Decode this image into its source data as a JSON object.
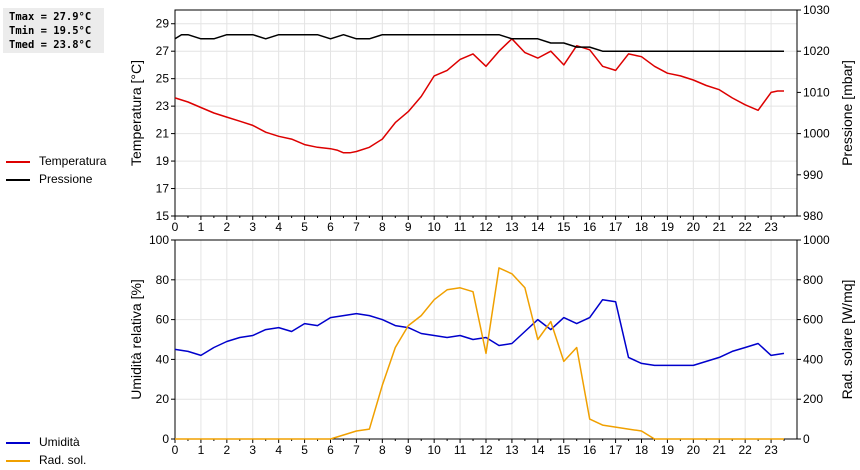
{
  "stats": {
    "tmax": "Tmax = 27.9°C",
    "tmin": "Tmin = 19.5°C",
    "tmed": "Tmed = 23.8°C"
  },
  "chart_data": [
    {
      "type": "line",
      "xlabel": "",
      "xlim": [
        0,
        24
      ],
      "x_ticks": [
        "0",
        "1",
        "2",
        "3",
        "4",
        "5",
        "6",
        "7",
        "8",
        "9",
        "10",
        "11",
        "12",
        "13",
        "14",
        "15",
        "16",
        "17",
        "18",
        "19",
        "20",
        "21",
        "22",
        "23"
      ],
      "ylabel_left": "Temperatura [°C]",
      "ylim_left": [
        15,
        30
      ],
      "y_ticks_left": [
        "15",
        "17",
        "19",
        "21",
        "23",
        "25",
        "27",
        "29"
      ],
      "ylabel_right": "Pressione [mbar]",
      "ylim_right": [
        980,
        1030
      ],
      "y_ticks_right": [
        "980",
        "990",
        "1000",
        "1010",
        "1020",
        "1030"
      ],
      "grid": true,
      "legend_placement": "left",
      "series": [
        {
          "name": "Temperatura",
          "axis": "left",
          "color": "#dd0000",
          "x": [
            0,
            0.5,
            1,
            1.5,
            2,
            2.5,
            3,
            3.5,
            4,
            4.5,
            5,
            5.5,
            6,
            6.25,
            6.5,
            6.75,
            7,
            7.5,
            8,
            8.5,
            9,
            9.5,
            10,
            10.5,
            11,
            11.5,
            12,
            12.5,
            13,
            13.5,
            14,
            14.5,
            15,
            15.5,
            16,
            16.5,
            17,
            17.5,
            18,
            18.5,
            19,
            19.5,
            20,
            20.5,
            21,
            21.5,
            22,
            22.5,
            23,
            23.25,
            23.5
          ],
          "values": [
            23.6,
            23.3,
            22.9,
            22.5,
            22.2,
            21.9,
            21.6,
            21.1,
            20.8,
            20.6,
            20.2,
            20.0,
            19.9,
            19.8,
            19.6,
            19.6,
            19.7,
            20.0,
            20.6,
            21.8,
            22.6,
            23.7,
            25.2,
            25.6,
            26.4,
            26.8,
            25.9,
            27.0,
            27.9,
            26.9,
            26.5,
            27.0,
            26.0,
            27.4,
            27.1,
            25.9,
            25.6,
            26.8,
            26.6,
            25.9,
            25.4,
            25.2,
            24.9,
            24.5,
            24.2,
            23.6,
            23.1,
            22.7,
            24.0,
            24.1,
            24.1
          ]
        },
        {
          "name": "Pressione",
          "axis": "right",
          "color": "#000000",
          "x": [
            0,
            0.25,
            0.5,
            1,
            1.5,
            2,
            2.5,
            3,
            3.5,
            4,
            4.5,
            5,
            5.5,
            6,
            6.5,
            7,
            7.5,
            8,
            8.5,
            9,
            9.5,
            10,
            10.5,
            11,
            11.5,
            12,
            12.5,
            13,
            13.5,
            14,
            14.5,
            15,
            15.5,
            16,
            16.5,
            17,
            17.5,
            18,
            18.5,
            19,
            19.5,
            20,
            20.5,
            21,
            21.5,
            22,
            22.5,
            23,
            23.5
          ],
          "values": [
            1023,
            1024,
            1024,
            1023,
            1023,
            1024,
            1024,
            1024,
            1023,
            1024,
            1024,
            1024,
            1024,
            1023,
            1024,
            1023,
            1023,
            1024,
            1024,
            1024,
            1024,
            1024,
            1024,
            1024,
            1024,
            1024,
            1024,
            1023,
            1023,
            1023,
            1022,
            1022,
            1021,
            1021,
            1020,
            1020,
            1020,
            1020,
            1020,
            1020,
            1020,
            1020,
            1020,
            1020,
            1020,
            1020,
            1020,
            1020,
            1020
          ]
        }
      ]
    },
    {
      "type": "line",
      "xlabel": "",
      "xlim": [
        0,
        24
      ],
      "x_ticks": [
        "0",
        "1",
        "2",
        "3",
        "4",
        "5",
        "6",
        "7",
        "8",
        "9",
        "10",
        "11",
        "12",
        "13",
        "14",
        "15",
        "16",
        "17",
        "18",
        "19",
        "20",
        "21",
        "22",
        "23"
      ],
      "ylabel_left": "Umidità relativa [%]",
      "ylim_left": [
        0,
        100
      ],
      "y_ticks_left": [
        "0",
        "20",
        "40",
        "60",
        "80",
        "100"
      ],
      "ylabel_right": "Rad. solare [W/mq]",
      "ylim_right": [
        0,
        1000
      ],
      "y_ticks_right": [
        "0",
        "200",
        "400",
        "600",
        "800",
        "1000"
      ],
      "grid": true,
      "legend_placement": "left",
      "series": [
        {
          "name": "Umidità",
          "axis": "left",
          "color": "#0000cc",
          "x": [
            0,
            0.5,
            1,
            1.5,
            2,
            2.5,
            3,
            3.5,
            4,
            4.5,
            5,
            5.5,
            6,
            6.5,
            7,
            7.5,
            8,
            8.5,
            9,
            9.5,
            10,
            10.5,
            11,
            11.5,
            12,
            12.5,
            13,
            13.5,
            14,
            14.5,
            15,
            15.5,
            16,
            16.5,
            17,
            17.5,
            18,
            18.5,
            19,
            19.5,
            20,
            20.5,
            21,
            21.5,
            22,
            22.5,
            23,
            23.5
          ],
          "values": [
            45,
            44,
            42,
            46,
            49,
            51,
            52,
            55,
            56,
            54,
            58,
            57,
            61,
            62,
            63,
            62,
            60,
            57,
            56,
            53,
            52,
            51,
            52,
            50,
            51,
            47,
            48,
            54,
            60,
            55,
            61,
            58,
            61,
            70,
            69,
            41,
            38,
            37,
            37,
            37,
            37,
            39,
            41,
            44,
            46,
            48,
            42,
            43
          ]
        },
        {
          "name": "Rad. sol.",
          "axis": "right",
          "color": "#f0a000",
          "x": [
            0,
            1,
            2,
            3,
            4,
            5,
            6,
            6.5,
            7,
            7.5,
            8,
            8.5,
            9,
            9.5,
            10,
            10.5,
            11,
            11.5,
            12,
            12.5,
            13,
            13.5,
            14,
            14.5,
            15,
            15.5,
            16,
            16.5,
            17,
            17.5,
            18,
            18.5,
            19,
            20,
            21,
            22,
            23,
            23.5
          ],
          "values": [
            0,
            0,
            0,
            0,
            0,
            0,
            0,
            20,
            40,
            50,
            270,
            460,
            570,
            620,
            700,
            750,
            760,
            740,
            430,
            860,
            830,
            760,
            500,
            590,
            390,
            460,
            100,
            70,
            60,
            50,
            40,
            0,
            0,
            0,
            0,
            0,
            0,
            0
          ]
        }
      ]
    }
  ]
}
